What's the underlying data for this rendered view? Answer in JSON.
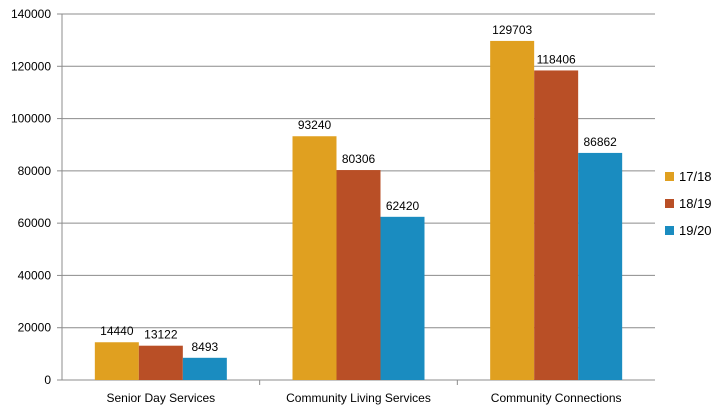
{
  "chart_data": {
    "type": "bar",
    "title": "",
    "xlabel": "",
    "ylabel": "",
    "categories": [
      "Senior Day Services",
      "Community Living Services",
      "Community Connections"
    ],
    "series": [
      {
        "name": "17/18",
        "color": "#E0A020",
        "values": [
          14440,
          93240,
          129703
        ]
      },
      {
        "name": "18/19",
        "color": "#B94F26",
        "values": [
          13122,
          80306,
          118406
        ]
      },
      {
        "name": "19/20",
        "color": "#1A8CC0",
        "values": [
          8493,
          62420,
          86862
        ]
      }
    ],
    "ylim": [
      0,
      140000
    ],
    "yticks": [
      "0",
      "20000",
      "40000",
      "60000",
      "80000",
      "100000",
      "120000",
      "140000"
    ],
    "grid": true,
    "legend_position": "right"
  }
}
